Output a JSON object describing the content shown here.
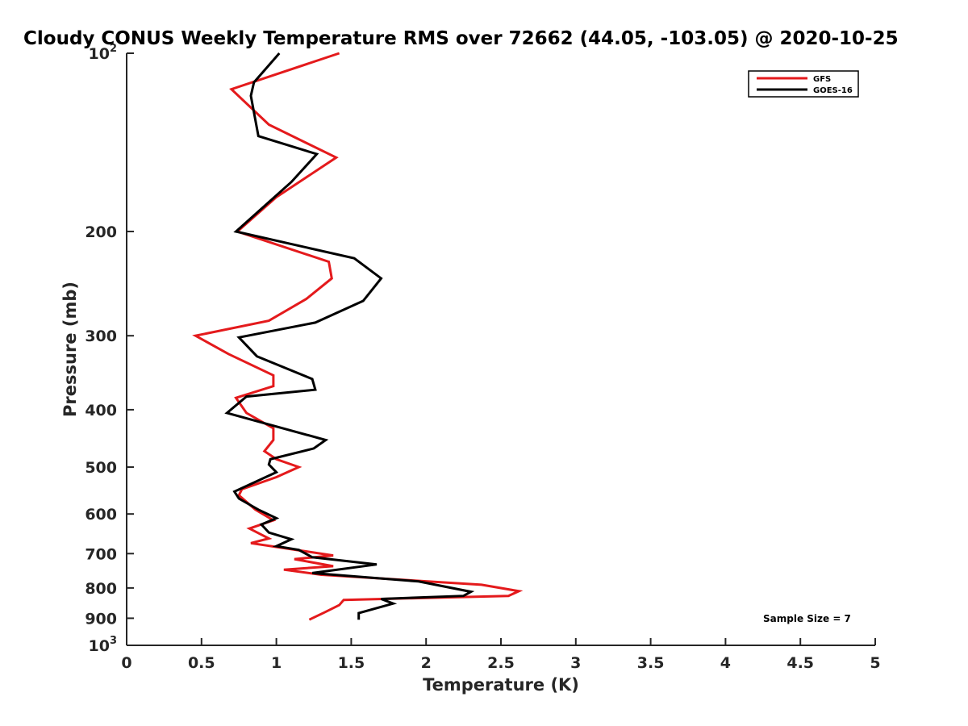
{
  "chart_data": {
    "type": "line",
    "title": "Cloudy CONUS Weekly Temperature RMS over 72662 (44.05, -103.05) @ 2020-10-25",
    "xlabel": "Temperature (K)",
    "ylabel": "Pressure (mb)",
    "xlim": [
      0,
      5
    ],
    "ylim": [
      100,
      1000
    ],
    "y_scale": "log",
    "y_reversed": true,
    "x_ticks": [
      0,
      0.5,
      1,
      1.5,
      2,
      2.5,
      3,
      3.5,
      4,
      4.5,
      5
    ],
    "x_tick_labels": [
      "0",
      "0.5",
      "1",
      "1.5",
      "2",
      "2.5",
      "3",
      "3.5",
      "4",
      "4.5",
      "5"
    ],
    "y_ticks": [
      100,
      200,
      300,
      400,
      500,
      600,
      700,
      800,
      900,
      1000
    ],
    "y_tick_labels": [
      {
        "base": "10",
        "exp": "2"
      },
      {
        "base": "200",
        "exp": ""
      },
      {
        "base": "300",
        "exp": ""
      },
      {
        "base": "400",
        "exp": ""
      },
      {
        "base": "500",
        "exp": ""
      },
      {
        "base": "600",
        "exp": ""
      },
      {
        "base": "700",
        "exp": ""
      },
      {
        "base": "800",
        "exp": ""
      },
      {
        "base": "900",
        "exp": ""
      },
      {
        "base": "10",
        "exp": "3"
      }
    ],
    "grid": false,
    "legend_position": "top-right",
    "annotation": "Sample Size = 7",
    "series": [
      {
        "name": "GFS",
        "color": "#e41a1c",
        "points": [
          [
            1.42,
            100
          ],
          [
            0.7,
            115
          ],
          [
            0.95,
            132
          ],
          [
            1.4,
            150
          ],
          [
            1.0,
            175
          ],
          [
            0.74,
            200
          ],
          [
            1.35,
            225
          ],
          [
            1.37,
            240
          ],
          [
            1.2,
            260
          ],
          [
            0.95,
            283
          ],
          [
            0.46,
            300
          ],
          [
            0.68,
            322
          ],
          [
            0.98,
            350
          ],
          [
            0.98,
            365
          ],
          [
            0.73,
            382
          ],
          [
            0.8,
            405
          ],
          [
            0.98,
            430
          ],
          [
            0.98,
            450
          ],
          [
            0.92,
            470
          ],
          [
            1.0,
            485
          ],
          [
            1.15,
            500
          ],
          [
            1.0,
            520
          ],
          [
            0.77,
            545
          ],
          [
            0.75,
            558
          ],
          [
            0.86,
            590
          ],
          [
            0.98,
            615
          ],
          [
            0.82,
            635
          ],
          [
            0.95,
            660
          ],
          [
            0.83,
            672
          ],
          [
            1.38,
            705
          ],
          [
            1.12,
            715
          ],
          [
            1.38,
            735
          ],
          [
            1.05,
            745
          ],
          [
            1.3,
            760
          ],
          [
            2.37,
            790
          ],
          [
            2.62,
            810
          ],
          [
            2.55,
            825
          ],
          [
            1.45,
            838
          ],
          [
            1.42,
            855
          ],
          [
            1.32,
            880
          ],
          [
            1.22,
            905
          ]
        ]
      },
      {
        "name": "GOES-16",
        "color": "#000000",
        "points": [
          [
            1.02,
            100
          ],
          [
            0.85,
            112
          ],
          [
            0.83,
            118
          ],
          [
            0.88,
            138
          ],
          [
            1.27,
            148
          ],
          [
            1.1,
            165
          ],
          [
            0.73,
            200
          ],
          [
            1.52,
            222
          ],
          [
            1.7,
            240
          ],
          [
            1.58,
            262
          ],
          [
            1.26,
            285
          ],
          [
            0.75,
            302
          ],
          [
            0.87,
            325
          ],
          [
            1.24,
            355
          ],
          [
            1.26,
            370
          ],
          [
            0.8,
            380
          ],
          [
            0.67,
            405
          ],
          [
            1.33,
            450
          ],
          [
            1.25,
            465
          ],
          [
            0.96,
            485
          ],
          [
            0.95,
            495
          ],
          [
            1.0,
            510
          ],
          [
            0.72,
            550
          ],
          [
            0.75,
            565
          ],
          [
            0.88,
            590
          ],
          [
            1.0,
            610
          ],
          [
            0.9,
            625
          ],
          [
            0.95,
            645
          ],
          [
            1.1,
            662
          ],
          [
            1.0,
            680
          ],
          [
            1.15,
            690
          ],
          [
            1.24,
            710
          ],
          [
            1.67,
            730
          ],
          [
            1.24,
            755
          ],
          [
            1.95,
            780
          ],
          [
            2.3,
            812
          ],
          [
            2.25,
            825
          ],
          [
            1.7,
            835
          ],
          [
            1.78,
            850
          ],
          [
            1.55,
            882
          ],
          [
            1.55,
            905
          ]
        ]
      }
    ]
  }
}
